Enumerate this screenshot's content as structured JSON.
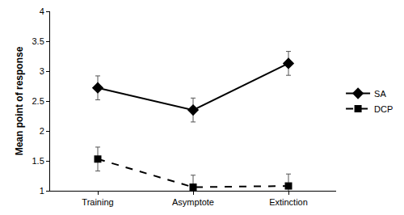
{
  "chart_data": {
    "type": "line",
    "y_label": "Mean point of response",
    "categories": [
      "Training",
      "Asymptote",
      "Extinction"
    ],
    "series": [
      {
        "name": "SA",
        "color": "#000000",
        "marker": "diamond",
        "line_style": "solid",
        "values": [
          2.72,
          2.35,
          3.13
        ],
        "errors": [
          0.2,
          0.2,
          0.2
        ]
      },
      {
        "name": "DCP",
        "color": "#000000",
        "marker": "square",
        "line_style": "dash",
        "values": [
          1.53,
          1.06,
          1.08
        ],
        "errors": [
          0.2,
          0.2,
          0.2
        ]
      }
    ],
    "ylim": [
      1,
      4
    ],
    "yticks": [
      1,
      1.5,
      2,
      2.5,
      3,
      3.5,
      4
    ],
    "grid": false,
    "legend": "right"
  }
}
